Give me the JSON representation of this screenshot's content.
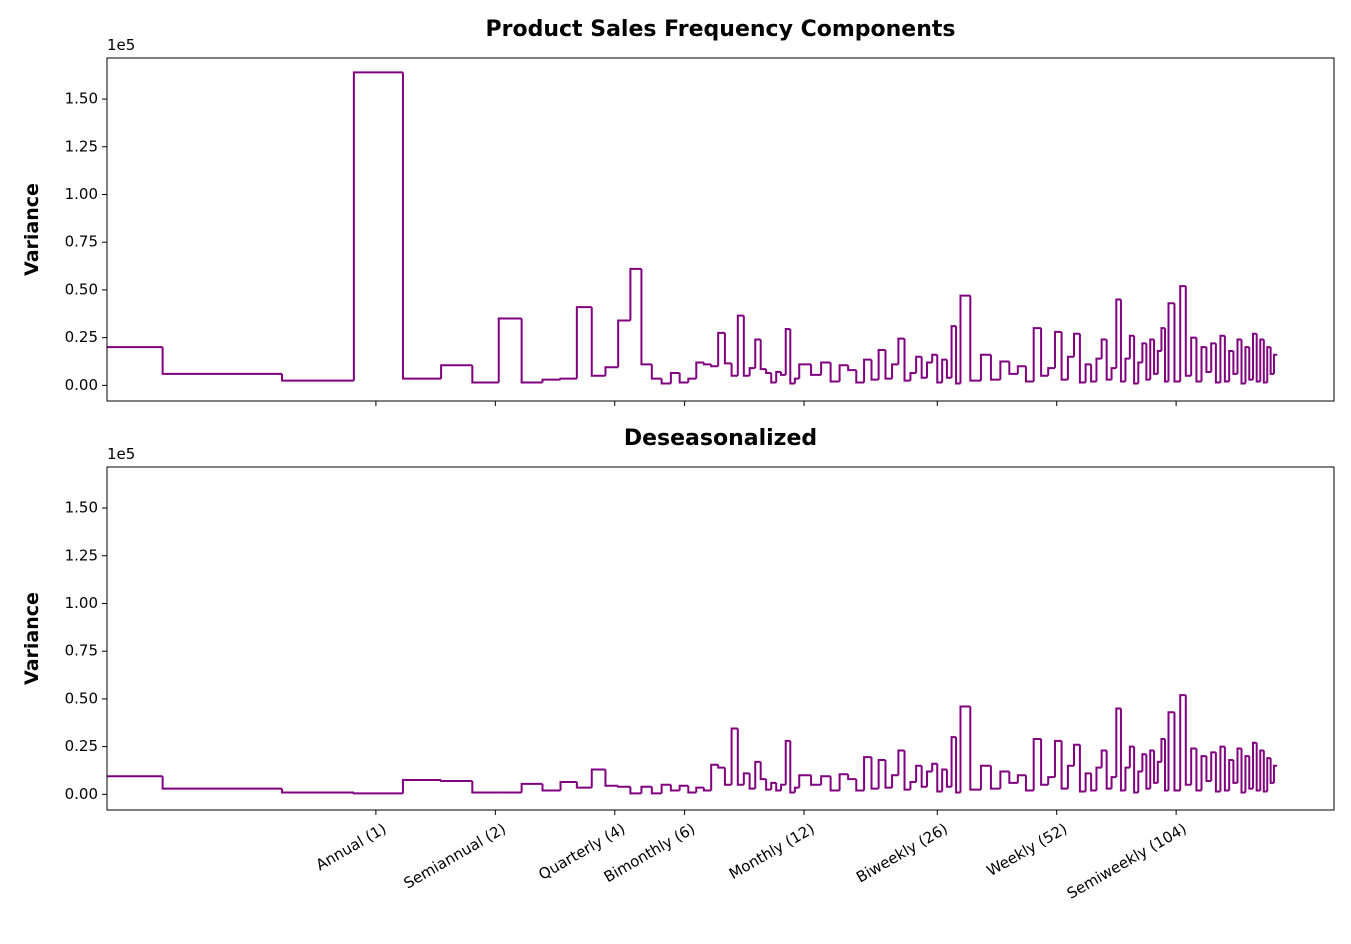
{
  "chart_data": [
    {
      "type": "line",
      "drawstyle": "steps-pre",
      "title": "Product Sales Frequency Components",
      "ylabel": "Variance",
      "y_offset_label": "1e5",
      "xscale": "log",
      "xlim": [
        0.21,
        260
      ],
      "ylim": [
        -8200,
        171500
      ],
      "color": "#800080",
      "yticks": [
        {
          "value": 0,
          "label": "0.00"
        },
        {
          "value": 25000,
          "label": "0.25"
        },
        {
          "value": 50000,
          "label": "0.50"
        },
        {
          "value": 75000,
          "label": "0.75"
        },
        {
          "value": 100000,
          "label": "1.00"
        },
        {
          "value": 125000,
          "label": "1.25"
        },
        {
          "value": 150000,
          "label": "1.50"
        }
      ],
      "x": [
        0.29,
        0.58,
        0.88,
        1.17,
        1.46,
        1.75,
        2.04,
        2.33,
        2.63,
        2.92,
        3.21,
        3.5,
        3.79,
        4.08,
        4.38,
        4.67,
        4.96,
        5.25,
        5.54,
        5.83,
        6.13,
        6.42,
        6.71,
        7,
        7.29,
        7.58,
        7.88,
        8.17,
        8.46,
        8.75,
        9.04,
        9.33,
        9.63,
        9.92,
        10.21,
        10.5,
        10.79,
        11.08,
        11.38,
        11.67,
        12.5,
        13.25,
        14,
        14.75,
        15.5,
        16.25,
        17,
        17.75,
        18.5,
        19.25,
        20,
        20.75,
        21.5,
        22.25,
        23,
        23.75,
        24.5,
        25.25,
        26,
        26.75,
        27.5,
        28.25,
        29,
        29.75,
        31.5,
        33.5,
        35.5,
        37.5,
        39.5,
        41.5,
        43.5,
        45.5,
        47.5,
        49.5,
        51.5,
        53.5,
        55.5,
        57.5,
        59.5,
        61.5,
        63.5,
        65.5,
        67.5,
        69.5,
        71.5,
        73.5,
        75.5,
        77.5,
        79.5,
        81.5,
        83.5,
        85.5,
        87.5,
        89.5,
        91.5,
        93.5,
        95.5,
        97.5,
        99.5,
        103,
        106.5,
        110,
        113.5,
        117,
        120.5,
        124,
        127.5,
        131,
        134.5,
        138,
        141.5,
        145,
        148.5,
        152,
        155.5,
        159,
        162.5,
        166,
        169.5,
        173,
        176.5,
        180,
        183.5,
        187
      ],
      "values": [
        20000,
        6000,
        2500,
        164000,
        3500,
        10500,
        1500,
        35000,
        1500,
        3000,
        3500,
        41000,
        5000,
        9500,
        34000,
        61000,
        11000,
        3500,
        1000,
        6500,
        1500,
        3500,
        12000,
        11000,
        10000,
        27500,
        11500,
        5000,
        36500,
        5000,
        9000,
        24000,
        8500,
        6500,
        1500,
        7000,
        5500,
        29500,
        1000,
        3500,
        11000,
        5500,
        12000,
        2000,
        10500,
        8000,
        1500,
        13500,
        3000,
        18500,
        3500,
        11000,
        24500,
        2500,
        6500,
        15000,
        4000,
        12000,
        16000,
        1500,
        13500,
        4000,
        31000,
        1000,
        47000,
        2500,
        16000,
        3000,
        12500,
        6000,
        10000,
        2000,
        30000,
        5000,
        9000,
        28000,
        3000,
        15000,
        27000,
        1500,
        11000,
        2000,
        14000,
        24000,
        3000,
        9000,
        45000,
        2000,
        14000,
        26000,
        1000,
        12000,
        22000,
        3000,
        24000,
        6000,
        18000,
        30000,
        2000,
        43000,
        2000,
        52000,
        5000,
        25000,
        2000,
        20000,
        7000,
        22000,
        1500,
        26000,
        2000,
        18000,
        6000,
        24000,
        1000,
        20000,
        3000,
        27000,
        2000,
        24000,
        1500,
        20000,
        6000,
        16000
      ]
    },
    {
      "type": "line",
      "drawstyle": "steps-pre",
      "title": "Deseasonalized",
      "ylabel": "Variance",
      "y_offset_label": "1e5",
      "xscale": "log",
      "xlim": [
        0.21,
        260
      ],
      "ylim": [
        -8200,
        171500
      ],
      "color": "#800080",
      "yticks": [
        {
          "value": 0,
          "label": "0.00"
        },
        {
          "value": 25000,
          "label": "0.25"
        },
        {
          "value": 50000,
          "label": "0.50"
        },
        {
          "value": 75000,
          "label": "0.75"
        },
        {
          "value": 100000,
          "label": "1.00"
        },
        {
          "value": 125000,
          "label": "1.25"
        },
        {
          "value": 150000,
          "label": "1.50"
        }
      ],
      "xticks": [
        {
          "value": 1,
          "label": "Annual (1)"
        },
        {
          "value": 2,
          "label": "Semiannual (2)"
        },
        {
          "value": 4,
          "label": "Quarterly (4)"
        },
        {
          "value": 6,
          "label": "Bimonthly (6)"
        },
        {
          "value": 12,
          "label": "Monthly (12)"
        },
        {
          "value": 26,
          "label": "Biweekly (26)"
        },
        {
          "value": 52,
          "label": "Weekly (52)"
        },
        {
          "value": 104,
          "label": "Semiweekly (104)"
        }
      ],
      "x": [
        0.29,
        0.58,
        0.88,
        1.17,
        1.46,
        1.75,
        2.04,
        2.33,
        2.63,
        2.92,
        3.21,
        3.5,
        3.79,
        4.08,
        4.38,
        4.67,
        4.96,
        5.25,
        5.54,
        5.83,
        6.13,
        6.42,
        6.71,
        7,
        7.29,
        7.58,
        7.88,
        8.17,
        8.46,
        8.75,
        9.04,
        9.33,
        9.63,
        9.92,
        10.21,
        10.5,
        10.79,
        11.08,
        11.38,
        11.67,
        12.5,
        13.25,
        14,
        14.75,
        15.5,
        16.25,
        17,
        17.75,
        18.5,
        19.25,
        20,
        20.75,
        21.5,
        22.25,
        23,
        23.75,
        24.5,
        25.25,
        26,
        26.75,
        27.5,
        28.25,
        29,
        29.75,
        31.5,
        33.5,
        35.5,
        37.5,
        39.5,
        41.5,
        43.5,
        45.5,
        47.5,
        49.5,
        51.5,
        53.5,
        55.5,
        57.5,
        59.5,
        61.5,
        63.5,
        65.5,
        67.5,
        69.5,
        71.5,
        73.5,
        75.5,
        77.5,
        79.5,
        81.5,
        83.5,
        85.5,
        87.5,
        89.5,
        91.5,
        93.5,
        95.5,
        97.5,
        99.5,
        103,
        106.5,
        110,
        113.5,
        117,
        120.5,
        124,
        127.5,
        131,
        134.5,
        138,
        141.5,
        145,
        148.5,
        152,
        155.5,
        159,
        162.5,
        166,
        169.5,
        173,
        176.5,
        180,
        183.5,
        187
      ],
      "values": [
        9500,
        3000,
        1000,
        500,
        7500,
        7000,
        1000,
        1000,
        5500,
        2000,
        6500,
        3500,
        13000,
        4500,
        4000,
        500,
        4000,
        500,
        5000,
        2000,
        4500,
        1000,
        3500,
        2000,
        15500,
        14000,
        5000,
        34500,
        5000,
        11000,
        3000,
        17000,
        8000,
        2500,
        6000,
        2000,
        5000,
        28000,
        1000,
        3500,
        10000,
        5000,
        9500,
        2000,
        10500,
        8000,
        2000,
        19500,
        3000,
        18000,
        3500,
        10000,
        23000,
        2500,
        6500,
        15000,
        4000,
        12000,
        16000,
        1500,
        13000,
        4000,
        30000,
        1000,
        46000,
        2500,
        15000,
        3000,
        12000,
        6000,
        10000,
        2000,
        29000,
        5000,
        9000,
        28000,
        3000,
        15000,
        26000,
        1500,
        11000,
        2000,
        14000,
        23000,
        3000,
        9000,
        45000,
        2000,
        14000,
        25000,
        1000,
        12000,
        21000,
        3000,
        23000,
        6000,
        17000,
        29000,
        2000,
        43000,
        2000,
        52000,
        5000,
        24000,
        2000,
        20000,
        7000,
        22000,
        1500,
        25000,
        2000,
        18000,
        6000,
        24000,
        1000,
        20000,
        3000,
        27000,
        2000,
        23000,
        1500,
        19000,
        6000,
        15000
      ]
    }
  ]
}
